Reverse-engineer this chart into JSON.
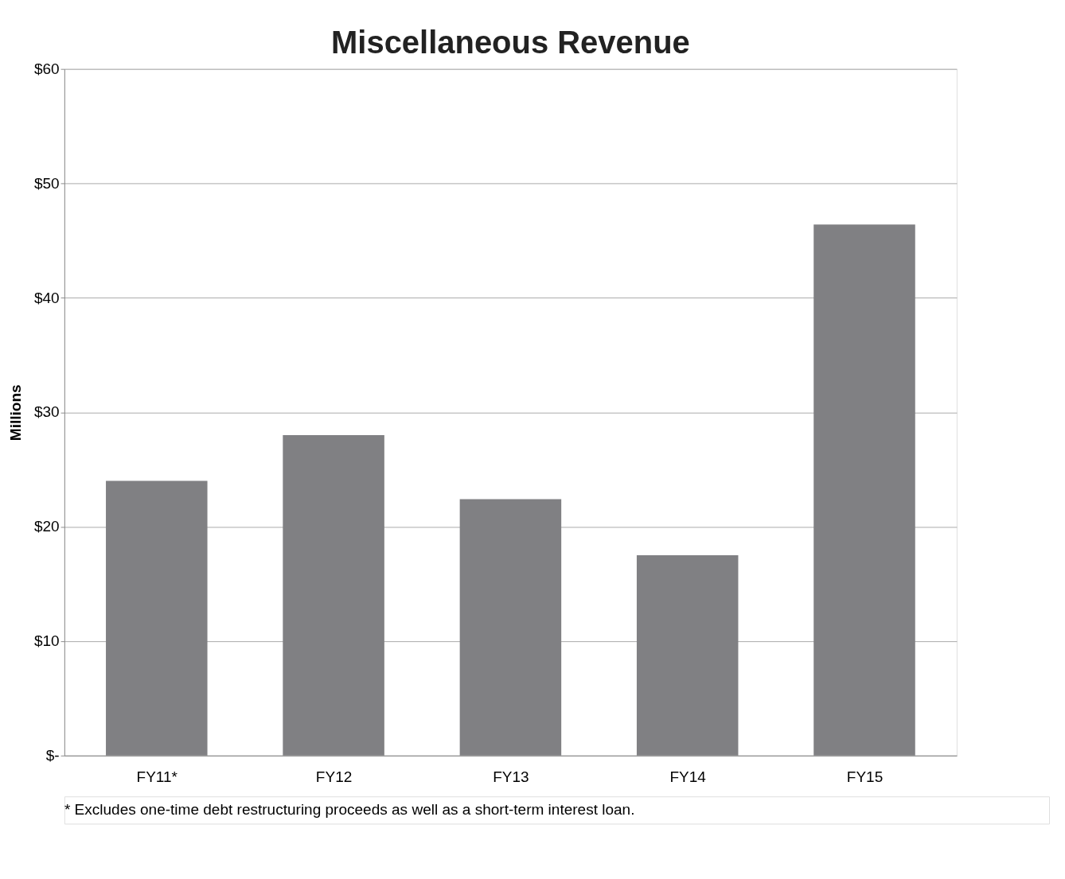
{
  "chart_data": {
    "type": "bar",
    "title": "Miscellaneous Revenue",
    "ylabel": "Millions",
    "categories": [
      "FY11*",
      "FY12",
      "FY13",
      "FY14",
      "FY15"
    ],
    "values": [
      24.0,
      28.0,
      22.4,
      17.5,
      46.4
    ],
    "color": "#808083",
    "ylim": [
      0,
      60
    ],
    "yticks": [
      {
        "value": 0,
        "label": "$-"
      },
      {
        "value": 10,
        "label": "$10"
      },
      {
        "value": 20,
        "label": "$20"
      },
      {
        "value": 30,
        "label": "$30"
      },
      {
        "value": 40,
        "label": "$40"
      },
      {
        "value": 50,
        "label": "$50"
      },
      {
        "value": 60,
        "label": "$60"
      }
    ],
    "grid": "y",
    "annotations": [
      "* Excludes one-time debt restructuring proceeds as well as a short-term interest loan."
    ]
  }
}
